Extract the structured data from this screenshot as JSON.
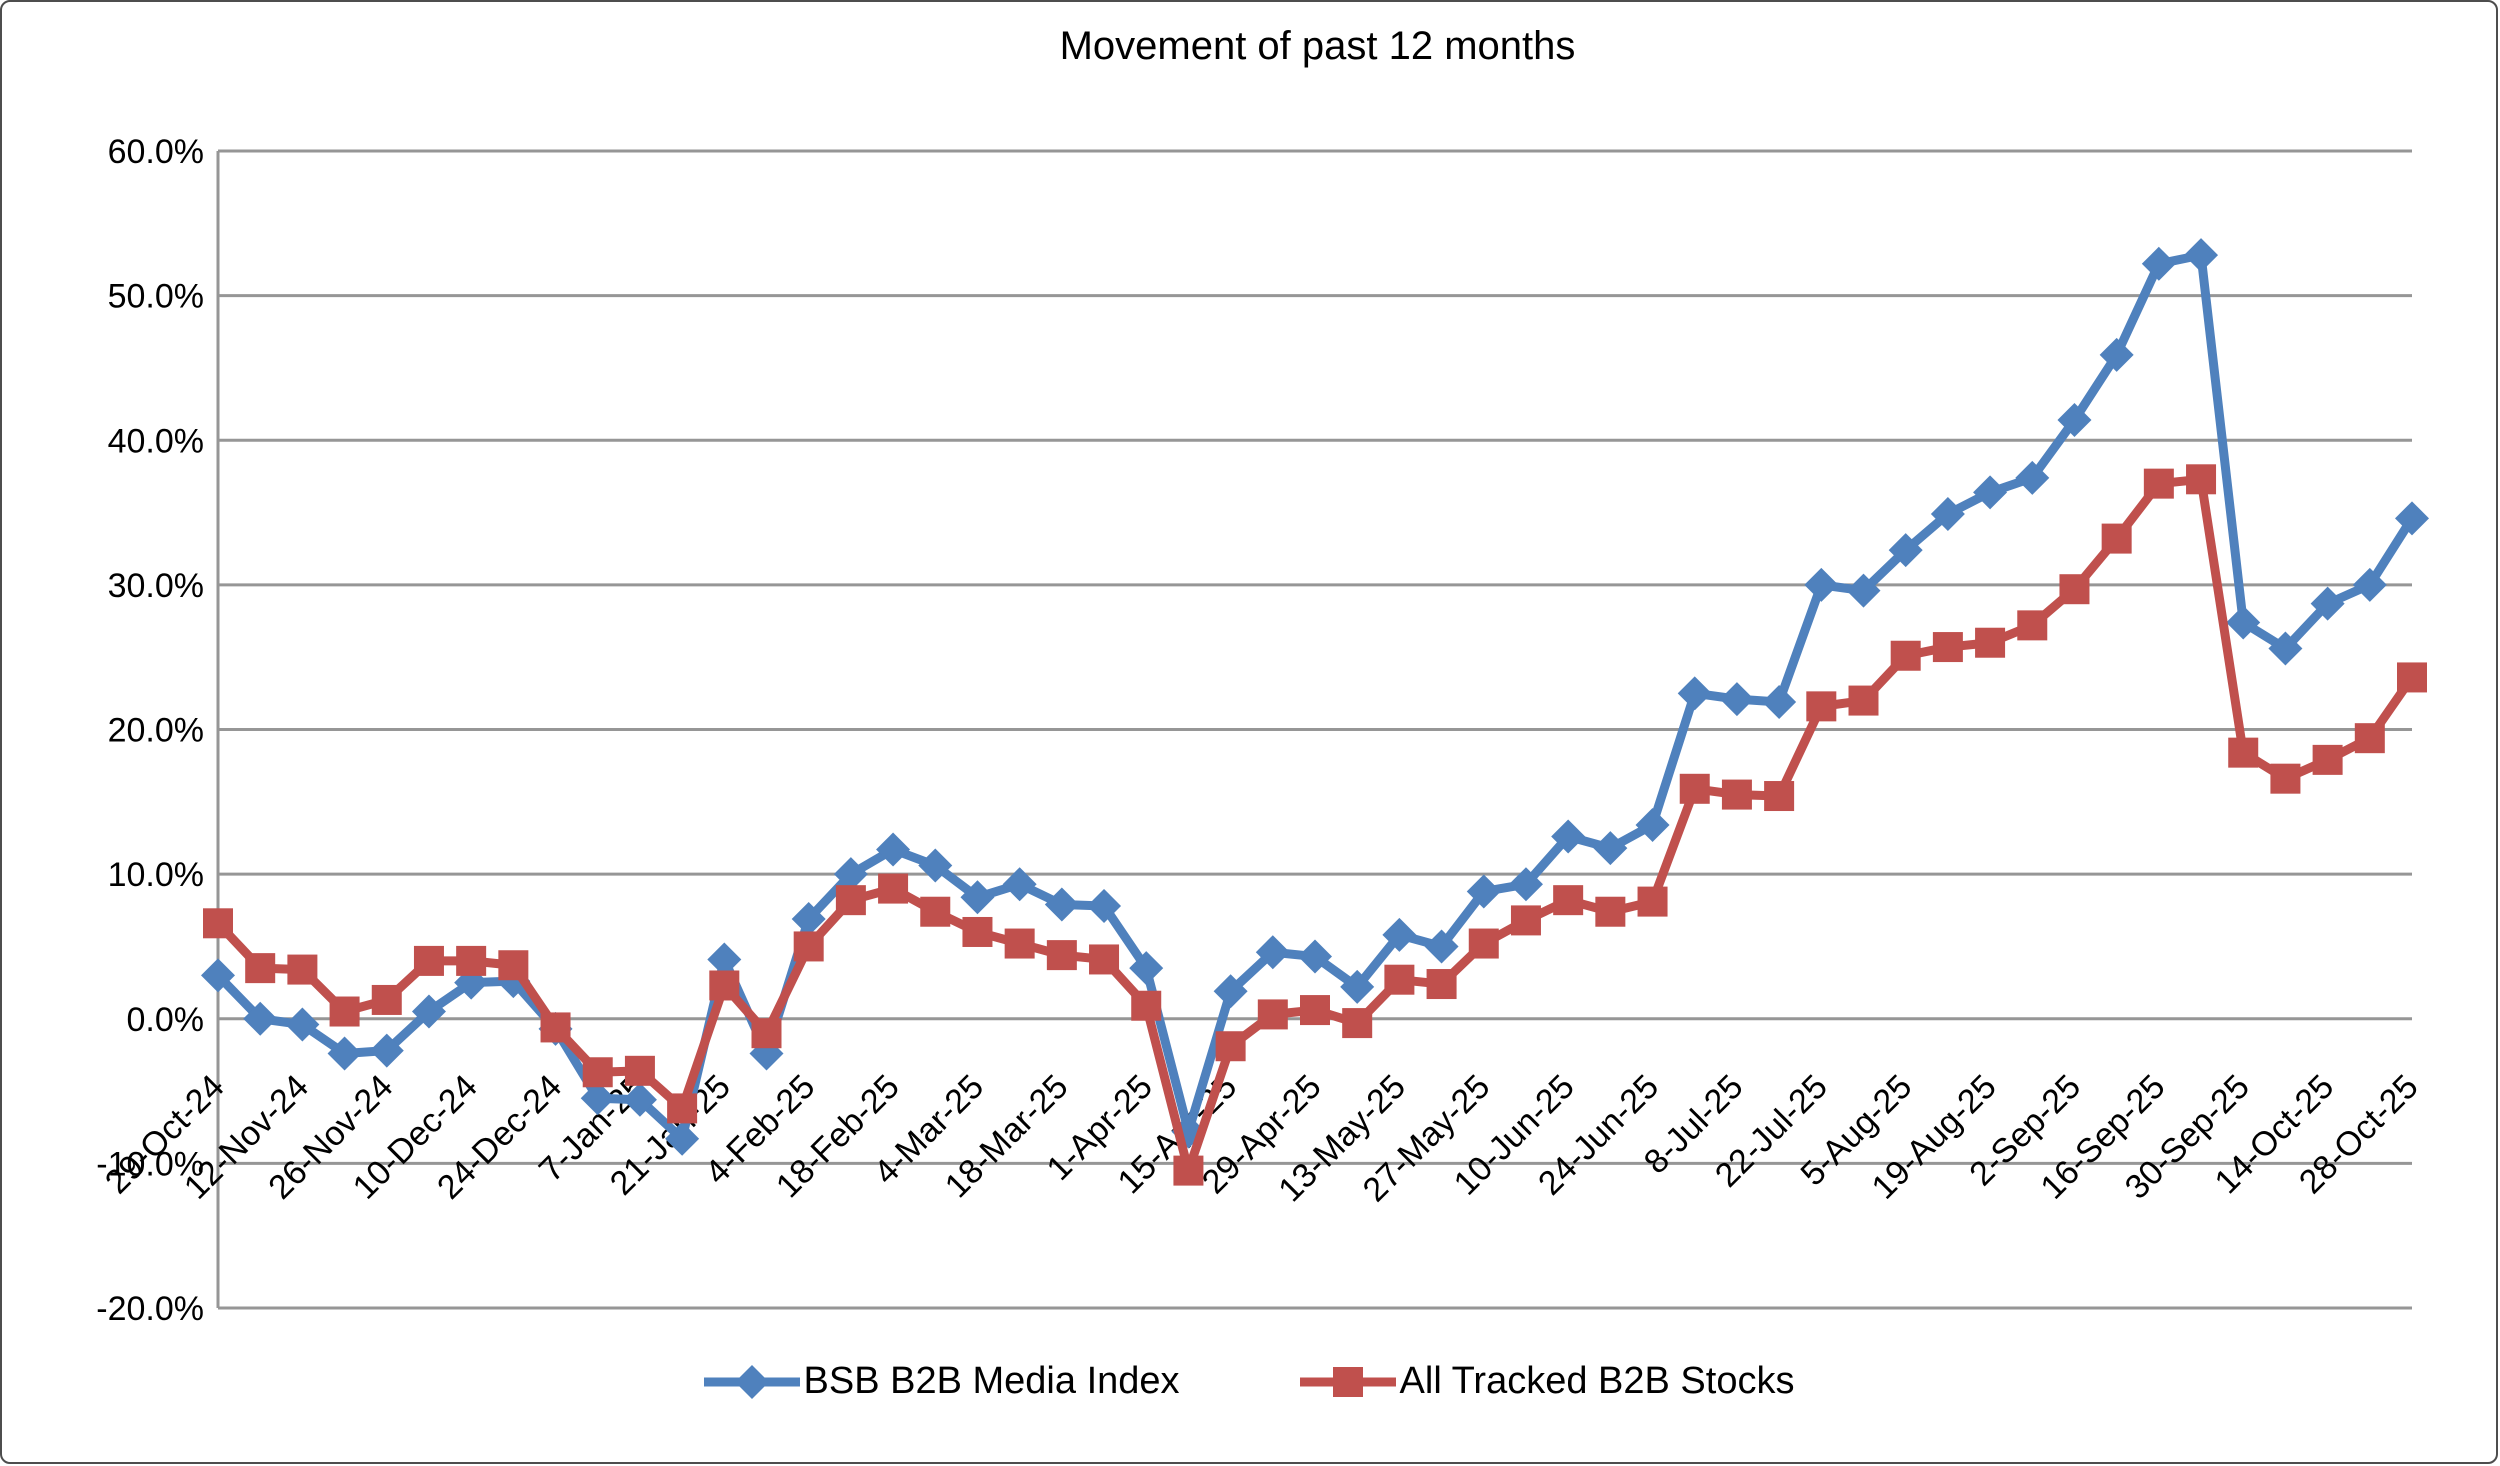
{
  "chart_data": {
    "type": "line",
    "title": "Movement of past 12 months",
    "x": [
      "29-Oct-24",
      "5-Nov-24",
      "12-Nov-24",
      "19-Nov-24",
      "26-Nov-24",
      "3-Dec-24",
      "10-Dec-24",
      "17-Dec-24",
      "24-Dec-24",
      "31-Dec-24",
      "7-Jan-25",
      "14-Jan-25",
      "21-Jan-25",
      "28-Jan-25",
      "4-Feb-25",
      "11-Feb-25",
      "18-Feb-25",
      "25-Feb-25",
      "4-Mar-25",
      "11-Mar-25",
      "18-Mar-25",
      "25-Mar-25",
      "1-Apr-25",
      "8-Apr-25",
      "15-Apr-25",
      "22-Apr-25",
      "29-Apr-25",
      "6-May-25",
      "13-May-25",
      "20-May-25",
      "27-May-25",
      "3-Jun-25",
      "10-Jun-25",
      "17-Jun-25",
      "24-Jun-25",
      "1-Jul-25",
      "8-Jul-25",
      "15-Jul-25",
      "22-Jul-25",
      "29-Jul-25",
      "5-Aug-25",
      "12-Aug-25",
      "19-Aug-25",
      "26-Aug-25",
      "2-Sep-25",
      "9-Sep-25",
      "16-Sep-25",
      "23-Sep-25",
      "30-Sep-25",
      "7-Oct-25",
      "14-Oct-25",
      "21-Oct-25",
      "28-Oct-25"
    ],
    "x_tick_labels": [
      "29-Oct-24",
      "12-Nov-24",
      "26-Nov-24",
      "10-Dec-24",
      "24-Dec-24",
      "7-Jan-25",
      "21-Jan-25",
      "4-Feb-25",
      "18-Feb-25",
      "4-Mar-25",
      "18-Mar-25",
      "1-Apr-25",
      "15-Apr-25",
      "29-Apr-25",
      "13-May-25",
      "27-May-25",
      "10-Jun-25",
      "24-Jun-25",
      "8-Jul-25",
      "22-Jul-25",
      "5-Aug-25",
      "19-Aug-25",
      "2-Sep-25",
      "16-Sep-25",
      "30-Sep-25",
      "14-Oct-25",
      "28-Oct-25"
    ],
    "y_tick_labels": [
      "60.0%",
      "50.0%",
      "40.0%",
      "30.0%",
      "20.0%",
      "10.0%",
      "0.0%",
      "-10.0%",
      "-20.0%"
    ],
    "y_tick_values": [
      60,
      50,
      40,
      30,
      20,
      10,
      0,
      -10,
      -20
    ],
    "ylim": [
      -20,
      60
    ],
    "grid": "horizontal",
    "legend_position": "bottom",
    "series": [
      {
        "name": "BSB B2B Media Index",
        "color": "#4F81BD",
        "marker": "diamond",
        "values": [
          3.0,
          0.0,
          -0.4,
          -2.4,
          -2.2,
          0.5,
          2.5,
          2.6,
          -0.7,
          -5.5,
          -5.6,
          -8.3,
          4.1,
          -2.4,
          6.9,
          10.0,
          11.7,
          10.6,
          8.4,
          9.3,
          7.9,
          7.8,
          3.5,
          -7.8,
          1.9,
          4.6,
          4.3,
          2.2,
          5.8,
          5.0,
          8.8,
          9.3,
          12.6,
          11.8,
          13.4,
          22.5,
          22.1,
          21.9,
          30.0,
          29.6,
          32.4,
          34.9,
          36.4,
          37.4,
          41.4,
          45.9,
          52.2,
          52.8,
          27.4,
          25.6,
          28.7,
          30.0,
          34.6
        ]
      },
      {
        "name": "All Tracked B2B Stocks",
        "color": "#C0504D",
        "marker": "square",
        "values": [
          6.6,
          3.5,
          3.4,
          0.5,
          1.3,
          4.0,
          4.0,
          3.7,
          -0.6,
          -3.7,
          -3.6,
          -6.2,
          2.3,
          -1.0,
          5.0,
          8.2,
          9.0,
          7.4,
          6.0,
          5.2,
          4.4,
          4.1,
          0.9,
          -10.5,
          -1.9,
          0.3,
          0.6,
          -0.3,
          2.7,
          2.4,
          5.2,
          6.8,
          8.2,
          7.4,
          8.1,
          15.9,
          15.5,
          15.4,
          21.6,
          22.0,
          25.1,
          25.7,
          26.0,
          27.2,
          29.7,
          33.2,
          37.0,
          37.3,
          18.4,
          16.6,
          17.9,
          19.4,
          23.6
        ]
      }
    ],
    "colors": {
      "gridline": "#969696",
      "axis_line": "#969696",
      "text": "#000000",
      "background": "#ffffff"
    }
  }
}
